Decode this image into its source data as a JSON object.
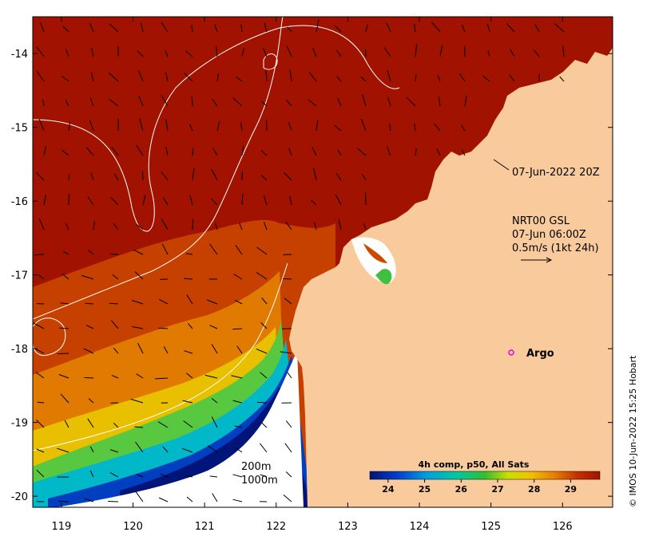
{
  "map": {
    "x_ticks": [
      "119",
      "120",
      "121",
      "122",
      "123",
      "124",
      "125",
      "126"
    ],
    "y_ticks": [
      "-14",
      "-15",
      "-16",
      "-17",
      "-18",
      "-19",
      "-20"
    ],
    "lon_range": [
      118.6,
      126.7
    ],
    "lat_range": [
      -20.15,
      -13.5
    ]
  },
  "annotations": {
    "satellite_time": "07-Jun-2022 20Z",
    "currents_source": "NRT00 GSL",
    "currents_time": "07-Jun 06:00Z",
    "vector_scale": "0.5m/s (1kt 24h)",
    "argo_label": "Argo",
    "isobath_200": "200m",
    "isobath_1000": "1000m"
  },
  "colorbar": {
    "title": "4h comp, p50, All Sats",
    "ticks": [
      "24",
      "25",
      "26",
      "27",
      "28",
      "29"
    ],
    "range": [
      23.5,
      29.8
    ]
  },
  "credit": "© IMOS 10-Jun-2022 15:25 Hobart",
  "colors": {
    "land": "#f9cb9c",
    "warm": "#a11300",
    "cool": "#00147a",
    "argo": "#e000e0"
  }
}
